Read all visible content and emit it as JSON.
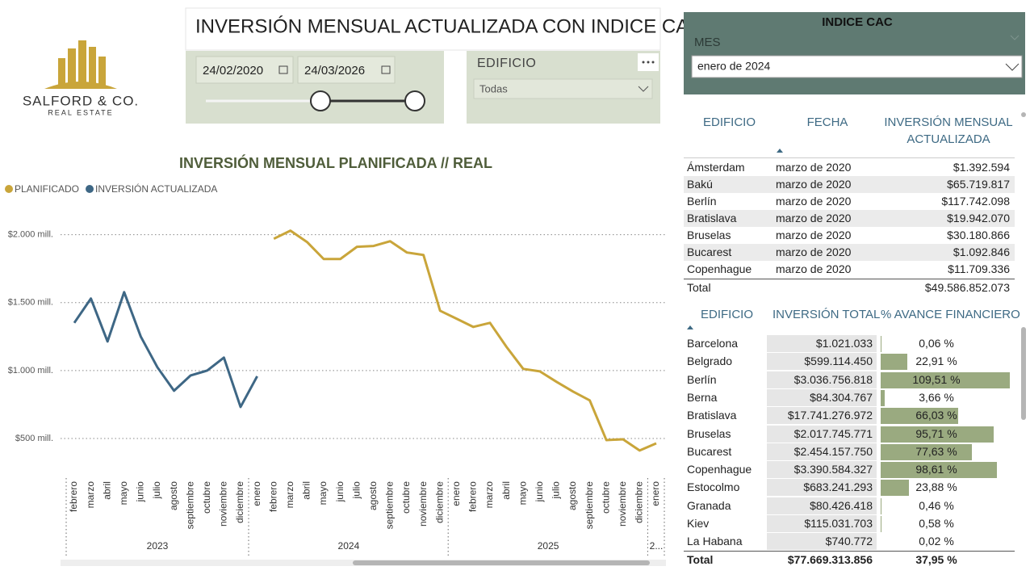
{
  "logo": {
    "name": "SALFORD & CO.",
    "tagline": "REAL ESTATE"
  },
  "header": {
    "title": "INVERSIÓN MENSUAL ACTUALIZADA CON INDICE CAC"
  },
  "date_filter": {
    "start": "24/02/2020",
    "end": "24/03/2026"
  },
  "building_filter": {
    "label": "EDIFICIO",
    "selected": "Todas"
  },
  "cac_panel": {
    "title": "INDICE CAC",
    "label": "MES",
    "selected": "enero de 2024"
  },
  "chart_data": {
    "type": "line",
    "title": "INVERSIÓN MENSUAL PLANIFICADA // REAL",
    "categories": [
      "febrero",
      "marzo",
      "abril",
      "mayo",
      "junio",
      "julio",
      "agosto",
      "septiembre",
      "octubre",
      "noviembre",
      "diciembre",
      "enero",
      "febrero",
      "marzo",
      "abril",
      "mayo",
      "junio",
      "julio",
      "agosto",
      "septiembre",
      "octubre",
      "noviembre",
      "diciembre",
      "enero",
      "febrero",
      "marzo",
      "abril",
      "mayo",
      "junio",
      "julio",
      "agosto",
      "septiembre",
      "octubre",
      "noviembre",
      "diciembre",
      "enero"
    ],
    "year_groups": [
      {
        "label": "2023",
        "months": 11
      },
      {
        "label": "2024",
        "months": 12
      },
      {
        "label": "2025",
        "months": 12
      },
      {
        "label": "2...",
        "months": 1
      }
    ],
    "series": [
      {
        "name": "PLANIFICADO",
        "color": "#c9a53a",
        "values": [
          null,
          null,
          null,
          null,
          null,
          null,
          null,
          null,
          null,
          null,
          null,
          null,
          1970,
          2030,
          1946,
          1821,
          1821,
          1911,
          1917,
          1952,
          1869,
          1851,
          1440,
          1381,
          1321,
          1351,
          1173,
          1012,
          994,
          917,
          845,
          780,
          488,
          494,
          411,
          464
        ]
      },
      {
        "name": "INVERSIÓN ACTUALIZADA",
        "color": "#3e6785",
        "values": [
          1351,
          1530,
          1214,
          1577,
          1250,
          1024,
          851,
          964,
          1000,
          1095,
          732,
          958,
          null,
          null,
          null,
          null,
          null,
          null,
          null,
          null,
          null,
          null,
          null,
          null,
          null,
          null,
          null,
          null,
          null,
          null,
          null,
          null,
          null,
          null,
          null,
          null
        ]
      }
    ],
    "ylim": [
      250,
      2200
    ],
    "yticks": [
      {
        "value": 500,
        "label": "$500 mill."
      },
      {
        "value": 1000,
        "label": "$1.000 mill."
      },
      {
        "value": 1500,
        "label": "$1.500 mill."
      },
      {
        "value": 2000,
        "label": "$2.000 mill."
      }
    ],
    "grid": true
  },
  "monthly_table": {
    "columns": [
      "EDIFICIO",
      "FECHA",
      "INVERSIÓN MENSUAL ACTUALIZADA"
    ],
    "rows": [
      [
        "Ámsterdam",
        "marzo de 2020",
        "$1.392.594"
      ],
      [
        "Bakú",
        "marzo de 2020",
        "$65.719.817"
      ],
      [
        "Berlín",
        "marzo de 2020",
        "$117.742.098"
      ],
      [
        "Bratislava",
        "marzo de 2020",
        "$19.942.070"
      ],
      [
        "Bruselas",
        "marzo de 2020",
        "$30.180.866"
      ],
      [
        "Bucarest",
        "marzo de 2020",
        "$1.092.846"
      ],
      [
        "Copenhague",
        "marzo de 2020",
        "$11.709.336"
      ]
    ],
    "total": [
      "Total",
      "$49.586.852.073"
    ]
  },
  "progress_table": {
    "columns": [
      "EDIFICIO",
      "INVERSIÓN TOTAL",
      "% AVANCE FINANCIERO"
    ],
    "rows": [
      [
        "Barcelona",
        "$1.021.033",
        {
          "value": 0.06,
          "label": "0,06 %"
        }
      ],
      [
        "Belgrado",
        "$599.114.450",
        {
          "value": 22.91,
          "label": "22,91 %"
        }
      ],
      [
        "Berlín",
        "$3.036.756.818",
        {
          "value": 109.51,
          "label": "109,51 %"
        }
      ],
      [
        "Berna",
        "$84.304.767",
        {
          "value": 3.66,
          "label": "3,66 %"
        }
      ],
      [
        "Bratislava",
        "$17.741.276.972",
        {
          "value": 66.03,
          "label": "66,03 %"
        }
      ],
      [
        "Bruselas",
        "$2.017.745.771",
        {
          "value": 95.71,
          "label": "95,71 %"
        }
      ],
      [
        "Bucarest",
        "$2.454.157.750",
        {
          "value": 77.63,
          "label": "77,63 %"
        }
      ],
      [
        "Copenhague",
        "$3.390.584.327",
        {
          "value": 98.61,
          "label": "98,61 %"
        }
      ],
      [
        "Estocolmo",
        "$683.241.293",
        {
          "value": 23.88,
          "label": "23,88 %"
        }
      ],
      [
        "Granada",
        "$80.426.418",
        {
          "value": 0.46,
          "label": "0,46 %"
        }
      ],
      [
        "Kiev",
        "$115.031.703",
        {
          "value": 0.58,
          "label": "0,58 %"
        }
      ],
      [
        "La Habana",
        "$740.772",
        {
          "value": 0.02,
          "label": "0,02 %"
        }
      ]
    ],
    "total": [
      "Total",
      "$77.669.313.856",
      "37,95 %"
    ]
  }
}
